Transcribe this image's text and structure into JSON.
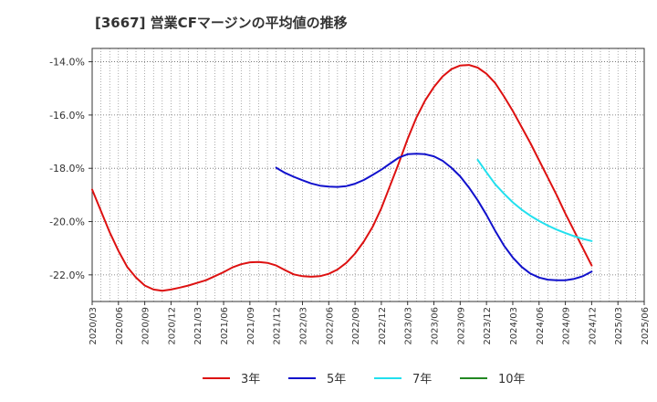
{
  "chart_data": {
    "type": "line",
    "title": "[3667]  営業CFマージンの平均値の推移",
    "xlabel": "",
    "ylabel": "",
    "ylim": [
      -23.0,
      -13.5
    ],
    "yticks": [
      -14.0,
      -16.0,
      -18.0,
      -20.0,
      -22.0
    ],
    "ytick_labels": [
      "-14.0%",
      "-16.0%",
      "-18.0%",
      "-20.0%",
      "-22.0%"
    ],
    "xticks": [
      "2020/03",
      "2020/06",
      "2020/09",
      "2020/12",
      "2021/03",
      "2021/06",
      "2021/09",
      "2021/12",
      "2022/03",
      "2022/06",
      "2022/09",
      "2022/12",
      "2023/03",
      "2023/06",
      "2023/09",
      "2023/12",
      "2024/03",
      "2024/06",
      "2024/09",
      "2024/12",
      "2025/03",
      "2025/06"
    ],
    "grid": true,
    "legend_position": "bottom",
    "series": [
      {
        "name": "3年",
        "color": "#dd1111",
        "x": [
          "2020/03",
          "2020/04",
          "2020/05",
          "2020/06",
          "2020/07",
          "2020/08",
          "2020/09",
          "2020/10",
          "2020/11",
          "2020/12",
          "2021/01",
          "2021/02",
          "2021/03",
          "2021/04",
          "2021/05",
          "2021/06",
          "2021/07",
          "2021/08",
          "2021/09",
          "2021/10",
          "2021/11",
          "2021/12",
          "2022/01",
          "2022/02",
          "2022/03",
          "2022/04",
          "2022/05",
          "2022/06",
          "2022/07",
          "2022/08",
          "2022/09",
          "2022/10",
          "2022/11",
          "2022/12",
          "2023/01",
          "2023/02",
          "2023/03",
          "2023/04",
          "2023/05",
          "2023/06",
          "2023/07",
          "2023/08",
          "2023/09",
          "2023/10",
          "2023/11",
          "2023/12",
          "2024/01",
          "2024/02",
          "2024/03",
          "2024/04",
          "2024/05",
          "2024/06",
          "2024/07",
          "2024/08",
          "2024/09",
          "2024/10",
          "2024/11",
          "2024/12"
        ],
        "values": [
          -18.8,
          -19.6,
          -20.4,
          -21.1,
          -21.7,
          -22.1,
          -22.4,
          -22.55,
          -22.6,
          -22.55,
          -22.48,
          -22.4,
          -22.3,
          -22.2,
          -22.05,
          -21.9,
          -21.72,
          -21.6,
          -21.53,
          -21.52,
          -21.55,
          -21.65,
          -21.82,
          -21.98,
          -22.05,
          -22.07,
          -22.05,
          -21.96,
          -21.8,
          -21.55,
          -21.2,
          -20.75,
          -20.2,
          -19.5,
          -18.65,
          -17.8,
          -16.9,
          -16.1,
          -15.45,
          -14.95,
          -14.55,
          -14.28,
          -14.14,
          -14.12,
          -14.22,
          -14.45,
          -14.8,
          -15.3,
          -15.85,
          -16.45,
          -17.05,
          -17.7,
          -18.35,
          -19.0,
          -19.7,
          -20.35,
          -21.0,
          -21.65
        ]
      },
      {
        "name": "5年",
        "color": "#1111cc",
        "x": [
          "2021/12",
          "2022/01",
          "2022/02",
          "2022/03",
          "2022/04",
          "2022/05",
          "2022/06",
          "2022/07",
          "2022/08",
          "2022/09",
          "2022/10",
          "2022/11",
          "2022/12",
          "2023/01",
          "2023/02",
          "2023/03",
          "2023/04",
          "2023/05",
          "2023/06",
          "2023/07",
          "2023/08",
          "2023/09",
          "2023/10",
          "2023/11",
          "2023/12",
          "2024/01",
          "2024/02",
          "2024/03",
          "2024/04",
          "2024/05",
          "2024/06",
          "2024/07",
          "2024/08",
          "2024/09",
          "2024/10",
          "2024/11",
          "2024/12"
        ],
        "values": [
          -17.98,
          -18.17,
          -18.32,
          -18.45,
          -18.57,
          -18.65,
          -18.69,
          -18.7,
          -18.67,
          -18.58,
          -18.44,
          -18.25,
          -18.05,
          -17.82,
          -17.6,
          -17.47,
          -17.45,
          -17.47,
          -17.55,
          -17.72,
          -17.98,
          -18.3,
          -18.72,
          -19.2,
          -19.75,
          -20.35,
          -20.9,
          -21.35,
          -21.7,
          -21.95,
          -22.1,
          -22.18,
          -22.2,
          -22.2,
          -22.15,
          -22.05,
          -21.88
        ]
      },
      {
        "name": "7年",
        "color": "#22e0ee",
        "x": [
          "2023/11",
          "2023/12",
          "2024/01",
          "2024/02",
          "2024/03",
          "2024/04",
          "2024/05",
          "2024/06",
          "2024/07",
          "2024/08",
          "2024/09",
          "2024/10",
          "2024/11",
          "2024/12"
        ],
        "values": [
          -17.68,
          -18.15,
          -18.6,
          -18.95,
          -19.28,
          -19.55,
          -19.78,
          -19.98,
          -20.15,
          -20.3,
          -20.43,
          -20.55,
          -20.65,
          -20.73
        ]
      },
      {
        "name": "10年",
        "color": "#228822",
        "x": [],
        "values": []
      }
    ]
  }
}
